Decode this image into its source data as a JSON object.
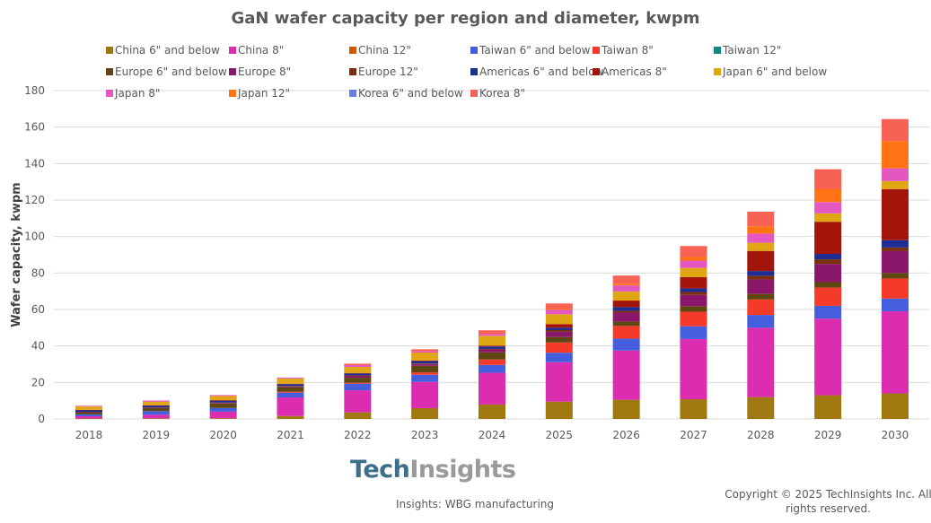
{
  "chart_data": {
    "type": "bar",
    "stacked": true,
    "title": "GaN wafer capacity per region and diameter, kwpm",
    "xlabel": "",
    "ylabel": "Wafer capacity, kwpm",
    "ylim": [
      0,
      180
    ],
    "yticks": [
      0,
      20,
      40,
      60,
      80,
      100,
      120,
      140,
      160,
      180
    ],
    "grid": true,
    "legend_position": "top",
    "categories": [
      "2018",
      "2019",
      "2020",
      "2021",
      "2022",
      "2023",
      "2024",
      "2025",
      "2026",
      "2027",
      "2028",
      "2029",
      "2030"
    ],
    "series": [
      {
        "name": "China 6\" and below",
        "color": "#A07810",
        "values": [
          0.2,
          0.3,
          0.4,
          1.6,
          3.6,
          5.9,
          7.9,
          9.5,
          10.5,
          10.8,
          12,
          13,
          14
        ]
      },
      {
        "name": "China 8\"",
        "color": "#DC2DB0",
        "values": [
          1.3,
          2,
          3.6,
          10.2,
          12.1,
          14.4,
          17.4,
          21.6,
          27,
          33,
          38,
          42,
          45
        ]
      },
      {
        "name": "China 12\"",
        "color": "#D4580A",
        "values": [
          0,
          0,
          0,
          0,
          0,
          0,
          0,
          0,
          0,
          0,
          0,
          0,
          0
        ]
      },
      {
        "name": "Taiwan 6\" and below",
        "color": "#445EDE",
        "values": [
          1,
          2,
          2,
          2.6,
          3.6,
          3.9,
          4.3,
          5.2,
          6.5,
          7,
          7,
          7,
          7
        ]
      },
      {
        "name": "Taiwan 8\"",
        "color": "#F53A2A",
        "values": [
          0,
          0,
          0,
          0.5,
          0.5,
          1.3,
          3,
          5.6,
          7,
          8,
          8.5,
          10,
          11
        ]
      },
      {
        "name": "Taiwan 12\"",
        "color": "#0E8A7C",
        "values": [
          0,
          0,
          0,
          0,
          0,
          0,
          0,
          0,
          0,
          0,
          0,
          0,
          0
        ]
      },
      {
        "name": "Europe 6\" and below",
        "color": "#5E4710",
        "values": [
          1,
          1.6,
          2.5,
          2.5,
          2.8,
          3.6,
          3.9,
          3,
          2.3,
          3,
          3,
          3,
          3
        ]
      },
      {
        "name": "Europe 8\"",
        "color": "#8A1769",
        "values": [
          0.2,
          0.2,
          0.3,
          0.4,
          1,
          1,
          1.6,
          3,
          5,
          6.2,
          8,
          10,
          12
        ]
      },
      {
        "name": "Europe 12\"",
        "color": "#7A300C",
        "values": [
          0.2,
          0.2,
          0.2,
          0.3,
          0.3,
          0.3,
          0.3,
          0.8,
          1,
          1.6,
          2,
          2.5,
          2
        ]
      },
      {
        "name": "Americas 6\" and below",
        "color": "#1C2E94",
        "values": [
          1,
          1.1,
          1,
          1,
          1,
          1.3,
          1.3,
          1.3,
          2,
          2,
          2.6,
          3,
          4
        ]
      },
      {
        "name": "Americas 8\"",
        "color": "#A3150A",
        "values": [
          0.1,
          0.1,
          0.3,
          0.2,
          0.3,
          0.3,
          0.5,
          2,
          3.6,
          6.2,
          11,
          17.6,
          28
        ]
      },
      {
        "name": "Japan 6\" and below",
        "color": "#E0A614",
        "values": [
          1.8,
          2,
          2.3,
          2.9,
          3.3,
          4.4,
          5.4,
          5.4,
          5,
          5,
          4.5,
          4.6,
          4.4
        ]
      },
      {
        "name": "Japan 8\"",
        "color": "#E457C0",
        "values": [
          0.4,
          0.6,
          0.5,
          0.5,
          1,
          0.8,
          1,
          2.5,
          3.3,
          4,
          5,
          6.2,
          7
        ]
      },
      {
        "name": "Japan 12\"",
        "color": "#FF7314",
        "values": [
          0,
          0,
          0,
          0,
          0,
          0,
          0,
          0.6,
          1,
          2,
          4,
          7,
          15
        ]
      },
      {
        "name": "Korea 6\" and below",
        "color": "#6A7DE0",
        "values": [
          0,
          0,
          0,
          0,
          0,
          0,
          0,
          0,
          0,
          0,
          0,
          0,
          0
        ]
      },
      {
        "name": "Korea 8\"",
        "color": "#F86255",
        "values": [
          0,
          0,
          0,
          0,
          0.8,
          1,
          2,
          2.8,
          4.4,
          6,
          8,
          11,
          12
        ]
      }
    ]
  },
  "footer": {
    "logo_part1": "Tech",
    "logo_part2": "Insights",
    "source": "Insights: WBG manufacturing",
    "copyright": "Copyright © 2025  TechInsights Inc.  All rights reserved."
  }
}
